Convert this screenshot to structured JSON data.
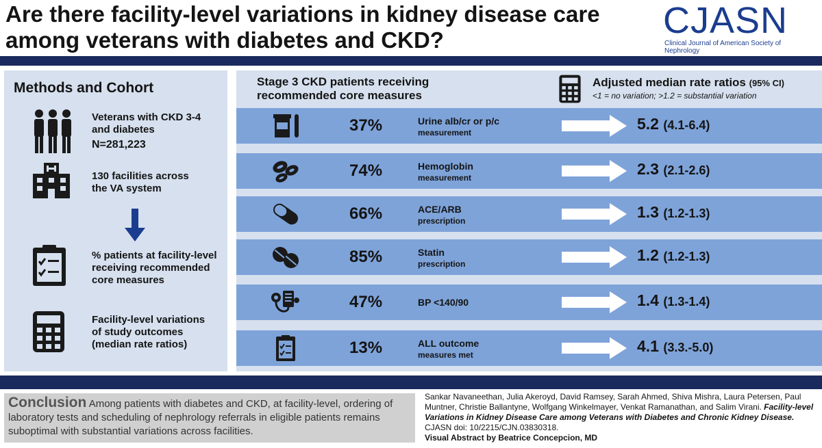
{
  "header": {
    "title": "Are there facility-level variations in kidney disease care among veterans with diabetes and CKD?",
    "logo_word": "CJASN",
    "logo_sub": "Clinical Journal of American Society of Nephrology"
  },
  "methods": {
    "title": "Methods and Cohort",
    "items": [
      {
        "icon": "people-icon",
        "line1": "Veterans with CKD 3-4",
        "line2": "and diabetes",
        "line3": "N=281,223"
      },
      {
        "icon": "hospital-icon",
        "line1": "130 facilities across",
        "line2": "the VA system"
      },
      {
        "icon": "clipboard-icon",
        "line1": "% patients at facility-level",
        "line2": "receiving recommended",
        "line3": "core measures"
      },
      {
        "icon": "calculator-icon",
        "line1": "Facility-level variations",
        "line2": "of study outcomes",
        "line3": "(median rate ratios)"
      }
    ]
  },
  "results": {
    "left_header_1": "Stage 3 CKD patients receiving",
    "left_header_2": "recommended core measures",
    "right_header": "Adjusted median rate ratios",
    "right_header_ci": "(95% CI)",
    "right_sub": "<1 = no variation; >1.2 = substantial variation",
    "rows": [
      {
        "icon": "urine-cup-icon",
        "pct": "37%",
        "m1": "Urine alb/cr or p/c",
        "m2": "measurement",
        "ratio": "5.2",
        "ci": "(4.1-6.4)"
      },
      {
        "icon": "blood-cells-icon",
        "pct": "74%",
        "m1": "Hemoglobin",
        "m2": "measurement",
        "ratio": "2.3",
        "ci": "(2.1-2.6)"
      },
      {
        "icon": "capsule-icon",
        "pct": "66%",
        "m1": "ACE/ARB",
        "m2": "prescription",
        "ratio": "1.3",
        "ci": "(1.2-1.3)"
      },
      {
        "icon": "pills-icon",
        "pct": "85%",
        "m1": "Statin",
        "m2": "prescription",
        "ratio": "1.2",
        "ci": "(1.2-1.3)"
      },
      {
        "icon": "blood-pressure-icon",
        "pct": "47%",
        "m1": "BP <140/90",
        "m2": "",
        "ratio": "1.4",
        "ci": "(1.3-1.4)"
      },
      {
        "icon": "checklist-icon",
        "pct": "13%",
        "m1": "ALL outcome",
        "m2": "measures met",
        "ratio": "4.1",
        "ci": "(3.3.-5.0)"
      }
    ]
  },
  "conclusion": {
    "label": "Conclusion",
    "text": "Among patients with diabetes and CKD, at facility-level, ordering of laboratory tests and scheduling of nephrology referrals in eligible patients remains suboptimal with substantial variations across facilities."
  },
  "citation": {
    "authors": "Sankar Navaneethan, Julia Akeroyd, David Ramsey, Sarah Ahmed, Shiva Mishra, Laura Petersen, Paul Muntner, Christie Ballantyne, Wolfgang Winkelmayer, Venkat Ramanathan, and Salim Virani.",
    "title": "Facility-level Variations in Kidney Disease Care among Veterans with Diabetes and Chronic Kidney Disease.",
    "doi": "CJASN doi: 10/2215/CJN.03830318.",
    "byline": "Visual Abstract by Beatrice Concepcion, MD"
  }
}
